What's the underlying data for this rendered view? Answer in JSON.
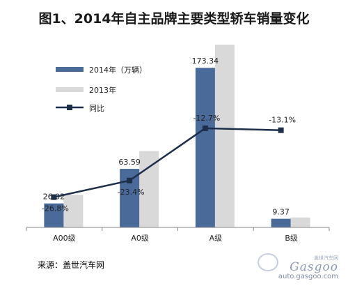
{
  "title": "图1、2014年自主品牌主要类型轿车销量变化",
  "source": "来源：盖世汽车网",
  "watermark": {
    "logo": "Gasgoo",
    "url": "auto.gasgoo.com",
    "cn": "盖世汽车网"
  },
  "colors": {
    "series2014": "#4a6a99",
    "series2013": "#d9d9d9",
    "yoy": "#1c2e4a",
    "axis": "#868686"
  },
  "chart_data": {
    "type": "bar",
    "title": "图1、2014年自主品牌主要类型轿车销量变化",
    "categories": [
      "A00级",
      "A0级",
      "A级",
      "B级"
    ],
    "series": [
      {
        "name": "2014年（万辆）",
        "kind": "bar",
        "values": [
          26.02,
          63.59,
          173.34,
          9.37
        ],
        "labels": [
          "26.02",
          "63.59",
          "173.34",
          "9.37"
        ]
      },
      {
        "name": "2013年",
        "kind": "bar",
        "values": [
          35.5,
          83.0,
          198.5,
          10.8
        ],
        "labels": []
      },
      {
        "name": "同比",
        "kind": "line",
        "values": [
          -26.8,
          -23.4,
          -12.7,
          -13.1
        ],
        "labels": [
          "-26.8%",
          "-23.4%",
          "-12.7%",
          "-13.1%"
        ]
      }
    ],
    "ylim": [
      0,
      200
    ],
    "y2lim": [
      -30,
      -10
    ],
    "legend": "top-left",
    "grid": false
  }
}
